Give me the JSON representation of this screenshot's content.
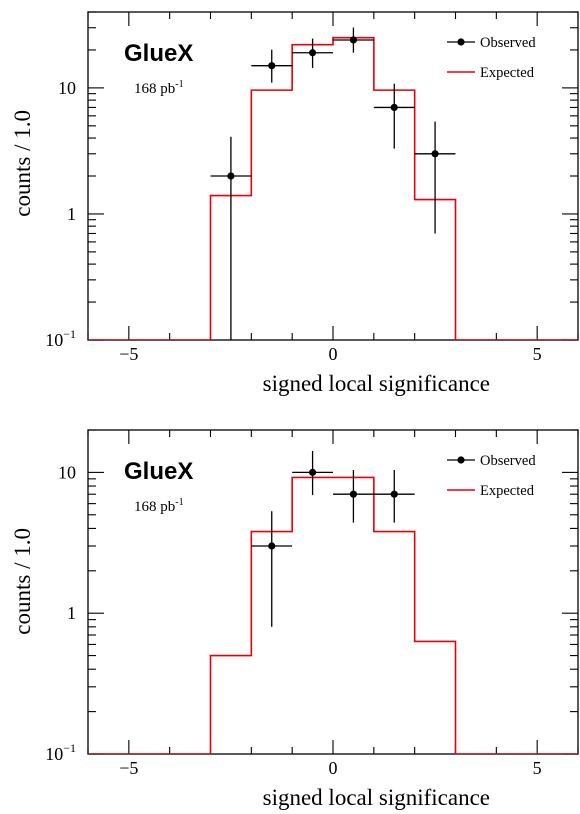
{
  "colors": {
    "observed": "#000000",
    "expected": "#e8000b",
    "axes": "#000000"
  },
  "chart_data": [
    {
      "type": "line",
      "experiment_label": "GlueX",
      "luminosity": {
        "text": "168 pb",
        "sup": "-1"
      },
      "xlabel": "signed local significance",
      "ylabel": "counts / 1.0",
      "xlim": [
        -6,
        6
      ],
      "ylim": [
        0.1,
        40
      ],
      "log_y": true,
      "x_ticks": [
        -5,
        0,
        5
      ],
      "y_ticks": [
        {
          "value": 0.1,
          "base": "10",
          "sup": "−1"
        },
        {
          "value": 1,
          "text": "1"
        },
        {
          "value": 10,
          "text": "10"
        }
      ],
      "legend_position": "top-right",
      "series": [
        {
          "name": "Observed",
          "type": "points_with_errors",
          "x": [
            -2.5,
            -1.5,
            -0.5,
            0.5,
            1.5,
            2.5
          ],
          "y": [
            2,
            15,
            19,
            24,
            7,
            3
          ],
          "y_err_low": [
            2,
            4,
            4.6,
            5,
            3.7,
            2.3
          ],
          "y_err_high": [
            2.1,
            5.1,
            5.6,
            6.1,
            3.8,
            2.4
          ],
          "x_halfwidth": 0.5
        },
        {
          "name": "Expected",
          "type": "step",
          "bin_edges": [
            -6,
            -3,
            -2,
            -1,
            0,
            1,
            2,
            3,
            6
          ],
          "values": [
            0.1,
            1.4,
            9.6,
            22,
            25,
            9.6,
            1.3,
            0.1
          ]
        }
      ]
    },
    {
      "type": "line",
      "experiment_label": "GlueX",
      "luminosity": {
        "text": "168 pb",
        "sup": "-1"
      },
      "xlabel": "signed local significance",
      "ylabel": "counts / 1.0",
      "xlim": [
        -6,
        6
      ],
      "ylim": [
        0.1,
        20
      ],
      "log_y": true,
      "x_ticks": [
        -5,
        0,
        5
      ],
      "y_ticks": [
        {
          "value": 0.1,
          "base": "10",
          "sup": "−1"
        },
        {
          "value": 1,
          "text": "1"
        },
        {
          "value": 10,
          "text": "10"
        }
      ],
      "legend_position": "top-right",
      "series": [
        {
          "name": "Observed",
          "type": "points_with_errors",
          "x": [
            -1.5,
            -0.5,
            0.5,
            1.5
          ],
          "y": [
            3,
            10,
            7,
            7
          ],
          "y_err_low": [
            2.2,
            3.1,
            2.6,
            2.6
          ],
          "y_err_high": [
            2.3,
            4.2,
            3.4,
            3.4
          ],
          "x_halfwidth": 0.5
        },
        {
          "name": "Expected",
          "type": "step",
          "bin_edges": [
            -6,
            -3,
            -2,
            -1,
            0,
            1,
            2,
            3,
            6
          ],
          "values": [
            0.1,
            0.5,
            3.8,
            9.2,
            9.2,
            3.8,
            0.63,
            0.1
          ]
        }
      ]
    }
  ]
}
